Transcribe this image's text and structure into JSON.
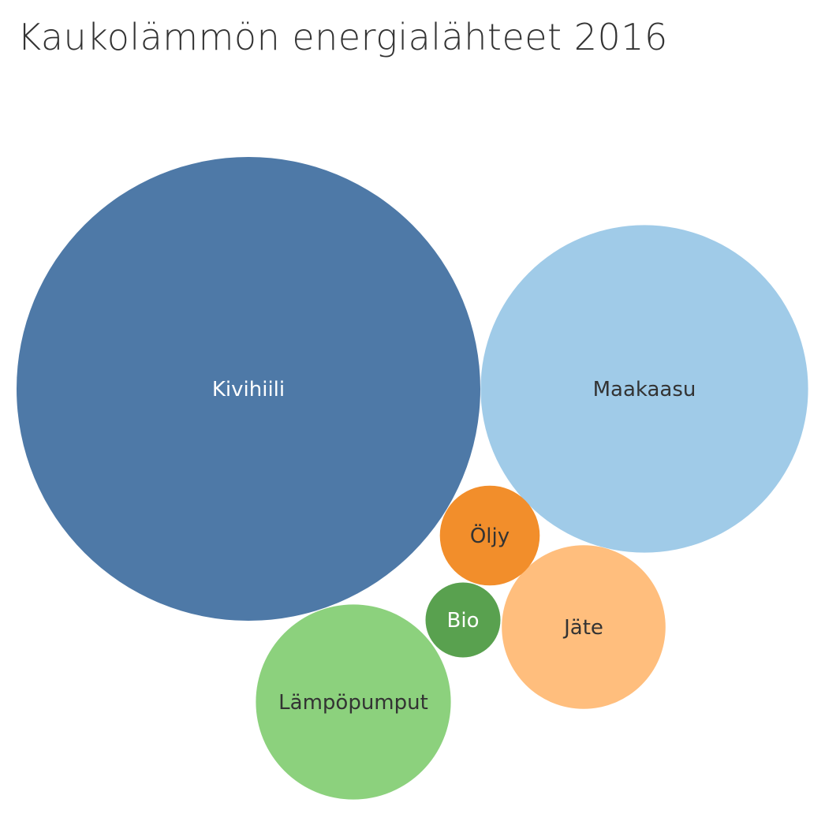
{
  "chart_data": {
    "type": "bubble",
    "title": "Kaukolämmön energialähteet 2016",
    "series": [
      {
        "name": "Kivihiili",
        "value": 345,
        "color": "#4e79a7",
        "label_color": "#ffffff"
      },
      {
        "name": "Maakaasu",
        "value": 172,
        "color": "#a0cbe8",
        "label_color": "#333333"
      },
      {
        "name": "Lämpöpumput",
        "value": 61,
        "color": "#8cd17d",
        "label_color": "#333333"
      },
      {
        "name": "Jäte",
        "value": 43,
        "color": "#ffbe7d",
        "label_color": "#333333"
      },
      {
        "name": "Öljy",
        "value": 16,
        "color": "#f28e2b",
        "label_color": "#333333"
      },
      {
        "name": "Bio",
        "value": 9,
        "color": "#59a14f",
        "label_color": "#ffffff"
      }
    ]
  }
}
